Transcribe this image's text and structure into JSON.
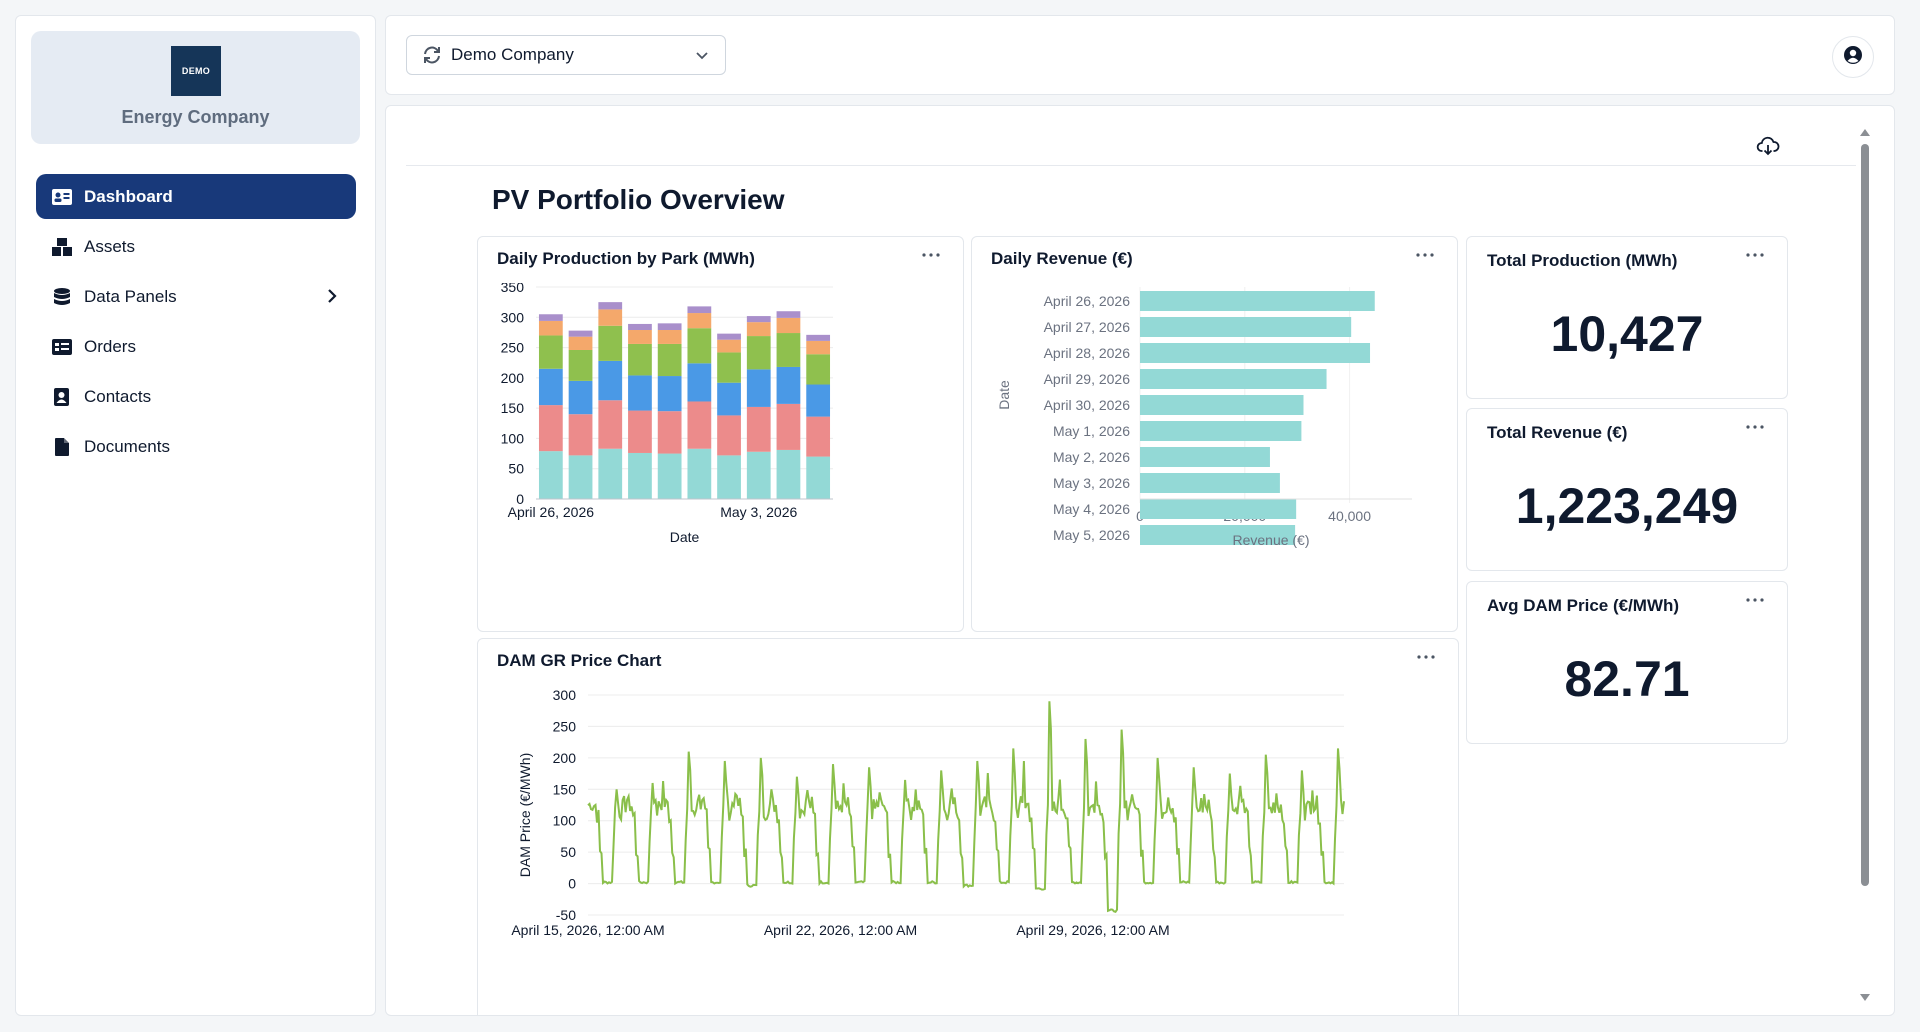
{
  "sidebar": {
    "logo_text": "DEMO",
    "company_name": "Energy Company",
    "items": [
      {
        "label": "Dashboard",
        "icon": "id-card-icon",
        "active": true
      },
      {
        "label": "Assets",
        "icon": "boxes-icon"
      },
      {
        "label": "Data Panels",
        "icon": "database-icon",
        "has_submenu": true
      },
      {
        "label": "Orders",
        "icon": "list-card-icon"
      },
      {
        "label": "Contacts",
        "icon": "address-book-icon"
      },
      {
        "label": "Documents",
        "icon": "file-icon"
      }
    ]
  },
  "header": {
    "company_select": "Demo Company",
    "user_icon": "user-circle-icon"
  },
  "page": {
    "title": "PV Portfolio Overview",
    "download_icon": "cloud-download-icon"
  },
  "colors": {
    "accent": "#18397a",
    "teal": "#93d9d6",
    "red": "#ec8b8b",
    "blue": "#4a99e6",
    "green": "#8fc04e",
    "orange": "#f4a86b",
    "purple": "#a98fcb",
    "line": "#8abf4a"
  },
  "kpis": [
    {
      "title": "Total Production (MWh)",
      "value": "10,427"
    },
    {
      "title": "Total Revenue (€)",
      "value": "1,223,249"
    },
    {
      "title": "Avg DAM Price (€/MWh)",
      "value": "82.71"
    }
  ],
  "charts": {
    "production": {
      "title": "Daily Production by Park (MWh)"
    },
    "revenue": {
      "title": "Daily Revenue (€)"
    },
    "price": {
      "title": "DAM GR Price Chart"
    }
  },
  "chart_data": [
    {
      "type": "bar",
      "stacked": true,
      "title": "Daily Production by Park (MWh)",
      "xlabel": "Date",
      "ylabel": "",
      "ylim": [
        0,
        350
      ],
      "yticks": [
        0,
        50,
        100,
        150,
        200,
        250,
        300,
        350
      ],
      "xtick_labels": [
        {
          "index": 0,
          "label": "April 26, 2026"
        },
        {
          "index": 7,
          "label": "May 3, 2026"
        }
      ],
      "categories": [
        "April 26, 2026",
        "April 27, 2026",
        "April 28, 2026",
        "April 29, 2026",
        "April 30, 2026",
        "May 1, 2026",
        "May 2, 2026",
        "May 3, 2026",
        "May 4, 2026",
        "May 5, 2026"
      ],
      "series": [
        {
          "color": "#93d9d6",
          "values": [
            79,
            72,
            83,
            76,
            75,
            83,
            72,
            78,
            81,
            70
          ]
        },
        {
          "color": "#ec8b8b",
          "values": [
            76,
            68,
            80,
            70,
            70,
            78,
            66,
            74,
            76,
            66
          ]
        },
        {
          "color": "#4a99e6",
          "values": [
            60,
            55,
            65,
            58,
            58,
            63,
            54,
            62,
            61,
            53
          ]
        },
        {
          "color": "#8fc04e",
          "values": [
            55,
            51,
            58,
            52,
            53,
            58,
            50,
            55,
            56,
            50
          ]
        },
        {
          "color": "#f4a86b",
          "values": [
            24,
            22,
            27,
            23,
            23,
            25,
            21,
            23,
            25,
            22
          ]
        },
        {
          "color": "#a98fcb",
          "values": [
            11,
            10,
            12,
            10,
            11,
            11,
            10,
            10,
            11,
            10
          ]
        }
      ]
    },
    {
      "type": "bar",
      "orientation": "horizontal",
      "title": "Daily Revenue (€)",
      "xlabel": "Revenue (€)",
      "ylabel": "Date",
      "xlim": [
        0,
        50000
      ],
      "xticks": [
        0,
        20000,
        40000
      ],
      "xtick_labels": [
        "0",
        "20,000",
        "40,000"
      ],
      "categories": [
        "April 26, 2026",
        "April 27, 2026",
        "April 28, 2026",
        "April 29, 2026",
        "April 30, 2026",
        "May 1, 2026",
        "May 2, 2026",
        "May 3, 2026",
        "May 4, 2026",
        "May 5, 2026"
      ],
      "values": [
        44800,
        40300,
        43900,
        35600,
        31200,
        30800,
        24800,
        26700,
        29800,
        29600
      ],
      "color": "#93d9d6"
    },
    {
      "type": "line",
      "title": "DAM GR Price Chart",
      "xlabel": "",
      "ylabel": "DAM Price (€/MWh)",
      "ylim": [
        -50,
        300
      ],
      "yticks": [
        -50,
        0,
        50,
        100,
        150,
        200,
        250,
        300
      ],
      "x_start": "April 15, 2026, 12:00 AM",
      "x_end": "May 5, 2026, 11:00 PM",
      "xtick_labels": [
        {
          "day": 0,
          "label": "April 15, 2026, 12:00 AM"
        },
        {
          "day": 7,
          "label": "April 22, 2026, 12:00 AM"
        },
        {
          "day": 14,
          "label": "April 29, 2026, 12:00 AM"
        }
      ],
      "resolution": "hourly",
      "daily_profile": {
        "night_max": [
          150,
          160,
          210,
          195,
          200,
          170,
          190,
          185,
          165,
          180,
          195,
          215,
          290,
          230,
          245,
          200,
          185,
          175,
          205,
          180,
          215
        ],
        "evening_peak": [
          150,
          160,
          210,
          195,
          200,
          170,
          190,
          185,
          165,
          180,
          195,
          215,
          290,
          230,
          245,
          200,
          185,
          175,
          205,
          180,
          215
        ],
        "midday_min": [
          0,
          0,
          0,
          0,
          -5,
          0,
          0,
          0,
          0,
          0,
          -5,
          0,
          -10,
          0,
          -45,
          0,
          0,
          0,
          0,
          0,
          0
        ]
      },
      "color": "#8abf4a"
    }
  ]
}
